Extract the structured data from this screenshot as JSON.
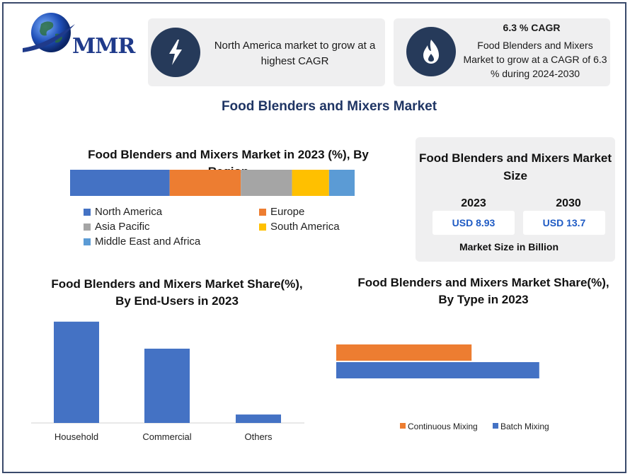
{
  "logo": {
    "text": "MMR",
    "icon": "globe-logo-icon"
  },
  "card_left": {
    "icon": "lightning-bolt-icon",
    "text": "North America market to grow at a highest CAGR"
  },
  "card_right": {
    "icon": "flame-icon",
    "title": "6.3 % CAGR",
    "text": "Food Blenders and Mixers Market to grow at a CAGR of 6.3 % during 2024-2030"
  },
  "main_title": "Food Blenders and Mixers Market",
  "colors": {
    "blue": "#4472c4",
    "orange": "#ed7d31",
    "gray": "#a5a5a5",
    "yellow": "#ffc000",
    "light_blue": "#5b9bd5",
    "navy": "#263a5a"
  },
  "market_size": {
    "title": "Food Blenders and Mixers Market Size",
    "year_a": "2023",
    "value_a": "USD 8.93",
    "year_b": "2030",
    "value_b": "USD 13.7",
    "footer": "Market Size in Billion"
  },
  "chart_data": [
    {
      "type": "bar",
      "orientation": "horizontal-stacked",
      "title": "Food Blenders and Mixers Market in 2023 (%), By Region",
      "series": [
        {
          "name": "North America",
          "values": [
            35
          ],
          "color": "#4472c4"
        },
        {
          "name": "Europe",
          "values": [
            25
          ],
          "color": "#ed7d31"
        },
        {
          "name": "Asia Pacific",
          "values": [
            18
          ],
          "color": "#a5a5a5"
        },
        {
          "name": "South America",
          "values": [
            13
          ],
          "color": "#ffc000"
        },
        {
          "name": "Middle East and Africa",
          "values": [
            9
          ],
          "color": "#5b9bd5"
        }
      ],
      "legend": "bottom"
    },
    {
      "type": "bar",
      "title": "Food Blenders and Mixers Market Share(%), By End-Users in 2023",
      "categories": [
        "Household",
        "Commercial",
        "Others"
      ],
      "values": [
        60,
        44,
        5
      ],
      "ylim": [
        0,
        62
      ],
      "color": "#4472c4"
    },
    {
      "type": "bar",
      "orientation": "horizontal",
      "title": "Food Blenders and Mixers Market Share(%), By Type in 2023",
      "series": [
        {
          "name": "Continuous Mixing",
          "values": [
            40
          ],
          "color": "#ed7d31"
        },
        {
          "name": "Batch Mixing",
          "values": [
            60
          ],
          "color": "#4472c4"
        }
      ],
      "xlim": [
        0,
        100
      ],
      "legend": "bottom"
    }
  ]
}
